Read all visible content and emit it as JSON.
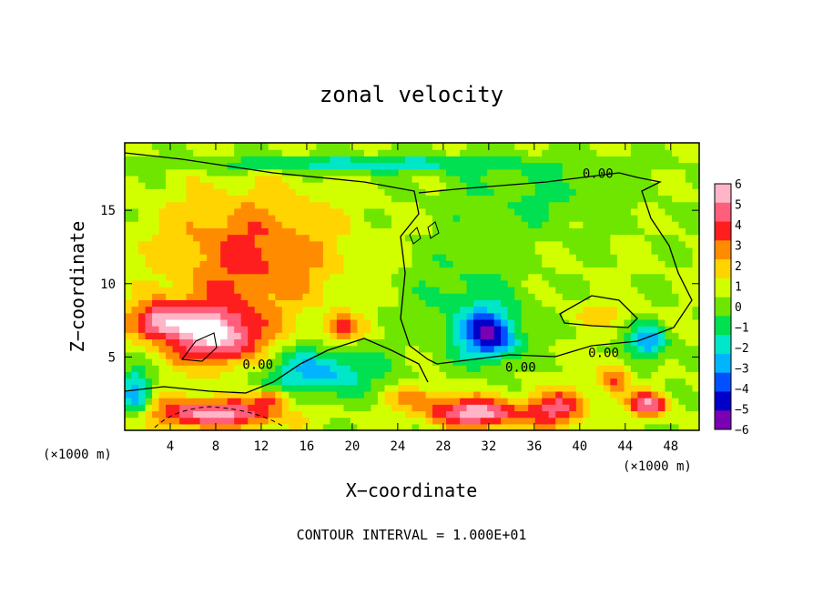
{
  "chart_data": {
    "type": "heatmap",
    "title": "zonal velocity",
    "xlabel": "X−coordinate",
    "ylabel": "Z−coordinate",
    "x_unit_left": "(×1000 m)",
    "x_unit_right": "(×1000 m)",
    "footer": "CONTOUR INTERVAL = 1.000E+01",
    "xlim": [
      0,
      50.5
    ],
    "ylim": [
      0,
      19.6
    ],
    "x_ticks": [
      4,
      8,
      12,
      16,
      20,
      24,
      28,
      32,
      36,
      40,
      44,
      48
    ],
    "y_ticks": [
      5,
      10,
      15
    ],
    "colorbar": {
      "ticks": [
        6,
        5,
        4,
        3,
        2,
        1,
        0,
        -1,
        -2,
        -3,
        -4,
        -5,
        -6
      ],
      "vmin": -6.5,
      "vmax": 6.5,
      "colors": [
        "#ffb4c8",
        "#ff5f7a",
        "#ff1e1e",
        "#ff8c00",
        "#ffd400",
        "#d2ff00",
        "#6ee600",
        "#00e050",
        "#00e6c8",
        "#00b4ff",
        "#0050ff",
        "#0000c8",
        "#7a00b4"
      ]
    },
    "contour_labels": [
      {
        "text": "0.00",
        "x": 41.6,
        "y": 17.2
      },
      {
        "text": "0.00",
        "x": 11.7,
        "y": 4.2
      },
      {
        "text": "0.00",
        "x": 34.8,
        "y": 4.0
      },
      {
        "text": "0.00",
        "x": 42.1,
        "y": 5.0
      }
    ],
    "field_features": [
      {
        "cx": 11,
        "cy": 12,
        "rx": 9,
        "ry": 5,
        "v": 3.2
      },
      {
        "cx": 8,
        "cy": 6.5,
        "rx": 5,
        "ry": 2.5,
        "v": 5.8
      },
      {
        "cx": 3,
        "cy": 7.5,
        "rx": 3,
        "ry": 1.5,
        "v": 4.5
      },
      {
        "cx": 8,
        "cy": 1.2,
        "rx": 7,
        "ry": 1.2,
        "v": 5.5
      },
      {
        "cx": 20,
        "cy": 18.2,
        "rx": 18,
        "ry": 0.7,
        "v": -2.6
      },
      {
        "cx": 32,
        "cy": 6.5,
        "rx": 3,
        "ry": 2,
        "v": -5.5
      },
      {
        "cx": 31,
        "cy": 1.2,
        "rx": 5,
        "ry": 1.2,
        "v": 5.5
      },
      {
        "cx": 38,
        "cy": 1.5,
        "rx": 3,
        "ry": 1.5,
        "v": 4
      },
      {
        "cx": 46,
        "cy": 6,
        "rx": 2,
        "ry": 1.5,
        "v": -4
      },
      {
        "cx": 46,
        "cy": 1.8,
        "rx": 2,
        "ry": 1,
        "v": 5
      },
      {
        "cx": 17,
        "cy": 4,
        "rx": 6,
        "ry": 2,
        "v": -3.5
      },
      {
        "cx": 1,
        "cy": 2.5,
        "rx": 1.5,
        "ry": 2,
        "v": -4
      },
      {
        "cx": 19,
        "cy": 7,
        "rx": 2,
        "ry": 1,
        "v": 3.5
      },
      {
        "cx": 13,
        "cy": 2.3,
        "rx": 1.5,
        "ry": 0.6,
        "v": 3.5
      },
      {
        "cx": 43,
        "cy": 3.5,
        "rx": 1.5,
        "ry": 1.5,
        "v": 3
      },
      {
        "cx": 36,
        "cy": 16,
        "rx": 10,
        "ry": 3,
        "v": -1.2
      },
      {
        "cx": 30,
        "cy": 9,
        "rx": 6,
        "ry": 4,
        "v": -1.5
      },
      {
        "cx": 42,
        "cy": 8,
        "rx": 3,
        "ry": 1,
        "v": 1.5
      },
      {
        "cx": 26,
        "cy": 2.2,
        "rx": 4,
        "ry": 1,
        "v": 2
      }
    ]
  }
}
